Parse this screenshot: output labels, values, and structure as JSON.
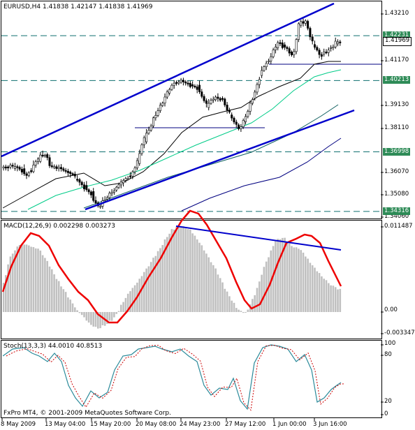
{
  "main": {
    "symbol_line": {
      "symbol": "EURUSD,H4",
      "open": "1.41838",
      "high": "1.42147",
      "low": "1.41838",
      "close": "1.41969"
    },
    "price_labels": [
      "1.43210",
      "1.41170",
      "1.39130",
      "1.38110",
      "1.36070",
      "1.35080",
      "1.34060"
    ],
    "tags": [
      {
        "text": "1.42231",
        "kind": "green",
        "price": 1.42231
      },
      {
        "text": "1.41969",
        "kind": "white",
        "price": 1.41969
      },
      {
        "text": "1.40213",
        "kind": "green",
        "price": 1.40213
      },
      {
        "text": "1.36998",
        "kind": "green",
        "price": 1.36998
      },
      {
        "text": "1.34316",
        "kind": "green",
        "price": 1.34316
      }
    ]
  },
  "macd": {
    "title": "MACD(12,26,9) 0.002298 0.003273",
    "labels": [
      "0.011487",
      "0.00",
      "-0.003347"
    ]
  },
  "stoch": {
    "title": "Stoch(13,3,3) 44.0010 40.8513",
    "labels": [
      "100",
      "80",
      "20",
      "0"
    ]
  },
  "footer": {
    "copyright": "FxPro MT4, © 2001-2009 MetaQuotes Software Corp."
  },
  "time_axis": [
    "8 May 2009",
    "13 May 04:00",
    "15 May 20:00",
    "20 May 08:00",
    "24 May 23:00",
    "27 May 12:00",
    "1 Jun 00:00",
    "3 Jun 16:00"
  ],
  "colors": {
    "candles": "#000000",
    "channel": "#0000cc",
    "ma_fast": "#000000",
    "ma_mid": "#00cc88",
    "ma_slow": "#0f5f5f",
    "ma_long": "#000080",
    "level_lines": "#0f6f6f",
    "macd_hist": "#c0c0c0",
    "macd_signal": "#ee0000",
    "stoch_main": "#2a8a9a",
    "stoch_signal": "#cc0000",
    "tag_green": "#2e8b57"
  }
}
